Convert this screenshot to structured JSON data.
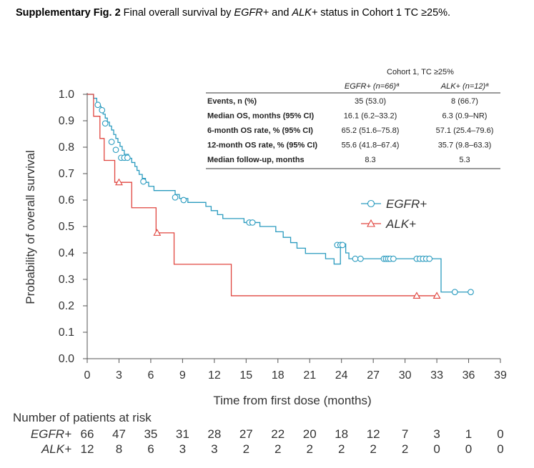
{
  "caption": {
    "bold": "Supplementary Fig. 2",
    "t1": " Final overall survival by ",
    "i1": "EGFR+",
    "t2": " and ",
    "i2": "ALK+",
    "t3": " status in Cohort 1 TC ≥25%."
  },
  "chart_data": {
    "type": "line",
    "subtype": "kaplan-meier",
    "xlabel": "Time from first dose (months)",
    "ylabel": "Probability of overall survival",
    "xlim": [
      0,
      39
    ],
    "ylim": [
      0,
      1.0
    ],
    "x_ticks": [
      0,
      3,
      6,
      9,
      12,
      15,
      18,
      21,
      24,
      27,
      30,
      33,
      36,
      39
    ],
    "y_ticks": [
      "0.0",
      "0.1",
      "0.2",
      "0.3",
      "0.4",
      "0.5",
      "0.6",
      "0.7",
      "0.8",
      "0.9",
      "1.0"
    ],
    "series": [
      {
        "name": "EGFR+",
        "color": "#2a9bbf",
        "marker": "circle",
        "steps": [
          [
            0,
            1.0
          ],
          [
            0.6,
            0.985
          ],
          [
            0.9,
            0.97
          ],
          [
            1.1,
            0.955
          ],
          [
            1.3,
            0.94
          ],
          [
            1.5,
            0.925
          ],
          [
            1.7,
            0.91
          ],
          [
            1.9,
            0.895
          ],
          [
            2.1,
            0.88
          ],
          [
            2.3,
            0.865
          ],
          [
            2.5,
            0.848
          ],
          [
            2.7,
            0.833
          ],
          [
            2.9,
            0.818
          ],
          [
            3.1,
            0.803
          ],
          [
            3.3,
            0.788
          ],
          [
            3.5,
            0.773
          ],
          [
            3.9,
            0.758
          ],
          [
            4.2,
            0.742
          ],
          [
            4.5,
            0.727
          ],
          [
            4.7,
            0.712
          ],
          [
            4.9,
            0.697
          ],
          [
            5.2,
            0.682
          ],
          [
            5.5,
            0.667
          ],
          [
            5.8,
            0.652
          ],
          [
            6.3,
            0.636
          ],
          [
            8.3,
            0.621
          ],
          [
            8.7,
            0.606
          ],
          [
            9.5,
            0.591
          ],
          [
            11.2,
            0.576
          ],
          [
            11.7,
            0.56
          ],
          [
            12.3,
            0.545
          ],
          [
            12.8,
            0.53
          ],
          [
            14.8,
            0.515
          ],
          [
            16.3,
            0.5
          ],
          [
            17.8,
            0.48
          ],
          [
            18.5,
            0.459
          ],
          [
            19.2,
            0.439
          ],
          [
            19.8,
            0.418
          ],
          [
            20.6,
            0.398
          ],
          [
            22.5,
            0.378
          ],
          [
            23.3,
            0.358
          ],
          [
            23.9,
            0.434
          ],
          [
            24.4,
            0.4
          ],
          [
            24.7,
            0.378
          ],
          [
            33.2,
            0.378
          ],
          [
            33.4,
            0.252
          ],
          [
            36.2,
            0.252
          ]
        ],
        "censor_x": [
          1.0,
          1.4,
          1.7,
          2.3,
          2.7,
          3.2,
          3.5,
          3.8,
          5.3,
          8.3,
          9.1,
          15.3,
          15.6,
          23.6,
          23.9,
          24.1,
          25.3,
          25.8,
          28.0,
          28.2,
          28.4,
          28.6,
          28.9,
          31.1,
          31.4,
          31.7,
          32.0,
          32.3,
          34.7,
          36.2
        ],
        "censor_y": [
          0.96,
          0.94,
          0.89,
          0.82,
          0.79,
          0.76,
          0.76,
          0.76,
          0.67,
          0.61,
          0.6,
          0.515,
          0.515,
          0.43,
          0.43,
          0.43,
          0.378,
          0.378,
          0.378,
          0.378,
          0.378,
          0.378,
          0.378,
          0.378,
          0.378,
          0.378,
          0.378,
          0.378,
          0.252,
          0.252
        ]
      },
      {
        "name": "ALK+",
        "color": "#e0453f",
        "marker": "triangle",
        "steps": [
          [
            0,
            1.0
          ],
          [
            0.6,
            0.917
          ],
          [
            1.2,
            0.833
          ],
          [
            1.6,
            0.75
          ],
          [
            2.6,
            0.667
          ],
          [
            4.2,
            0.571
          ],
          [
            6.5,
            0.476
          ],
          [
            8.2,
            0.357
          ],
          [
            13.6,
            0.238
          ],
          [
            33.0,
            0.238
          ]
        ],
        "censor_x": [
          3.0,
          6.6,
          31.1,
          33.0
        ],
        "censor_y": [
          0.667,
          0.476,
          0.238,
          0.238
        ]
      }
    ],
    "legend": [
      "EGFR+",
      "ALK+"
    ],
    "legend_position": "right-center"
  },
  "table": {
    "title": "Cohort 1, TC ≥25%",
    "col1": "EGFR+ (n=66)ª",
    "col2": "ALK+ (n=12)ª",
    "rows": [
      {
        "label": "Events, n (%)",
        "v1": "35 (53.0)",
        "v2": "8 (66.7)"
      },
      {
        "label": "Median OS, months (95% CI)",
        "v1": "16.1 (6.2–33.2)",
        "v2": "6.3 (0.9–NR)"
      },
      {
        "label": "6-month OS rate, % (95% CI)",
        "v1": "65.2 (51.6–75.8)",
        "v2": "57.1 (25.4–79.6)"
      },
      {
        "label": "12-month OS rate, % (95% CI)",
        "v1": "55.6 (41.8–67.4)",
        "v2": "35.7 (9.8–63.3)"
      },
      {
        "label": "Median follow-up, months",
        "v1": "8.3",
        "v2": "5.3"
      }
    ]
  },
  "risk": {
    "title": "Number of patients at risk",
    "rows": [
      {
        "label": "EGFR+",
        "values": [
          "66",
          "47",
          "35",
          "31",
          "28",
          "27",
          "22",
          "20",
          "18",
          "12",
          "7",
          "3",
          "1",
          "0"
        ]
      },
      {
        "label": "ALK+",
        "values": [
          "12",
          "8",
          "6",
          "3",
          "3",
          "2",
          "2",
          "2",
          "2",
          "2",
          "2",
          "0",
          "0",
          "0"
        ]
      }
    ]
  }
}
